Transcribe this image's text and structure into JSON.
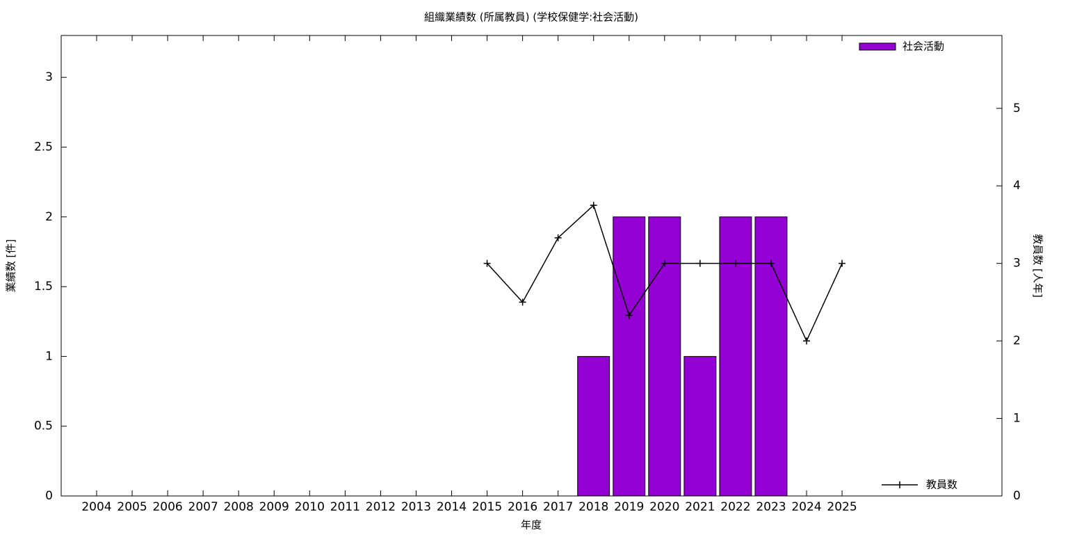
{
  "chart_data": {
    "type": "bar-line",
    "title": "組織業績数 (所属教員) (学校保健学:社会活動)",
    "x_label": "年度",
    "y_label": "業績数 [件]",
    "y2_label": "教員数 [人年]",
    "categories": [
      "2004",
      "2005",
      "2006",
      "2007",
      "2008",
      "2009",
      "2010",
      "2011",
      "2012",
      "2013",
      "2014",
      "2015",
      "2016",
      "2017",
      "2018",
      "2019",
      "2020",
      "2021",
      "2022",
      "2023",
      "2024",
      "2025"
    ],
    "series": [
      {
        "name": "社会活動",
        "type": "bar",
        "color": "#9400d3",
        "values": [
          null,
          null,
          null,
          null,
          null,
          null,
          null,
          null,
          null,
          null,
          null,
          null,
          null,
          null,
          1,
          2,
          2,
          1,
          2,
          2,
          null,
          null
        ]
      },
      {
        "name": "教員数",
        "type": "line",
        "axis": "y2",
        "color": "#000000",
        "values": [
          null,
          null,
          null,
          null,
          null,
          null,
          null,
          null,
          null,
          null,
          null,
          3,
          2.5,
          3.33,
          3.75,
          2.33,
          3,
          3,
          3,
          3,
          2,
          3
        ]
      }
    ],
    "ylim": [
      0,
      3.3
    ],
    "yticks": [
      0,
      0.5,
      1,
      1.5,
      2,
      2.5,
      3
    ],
    "y2lim": [
      0,
      5.94
    ],
    "y2ticks": [
      0,
      1,
      2,
      3,
      4,
      5
    ]
  }
}
